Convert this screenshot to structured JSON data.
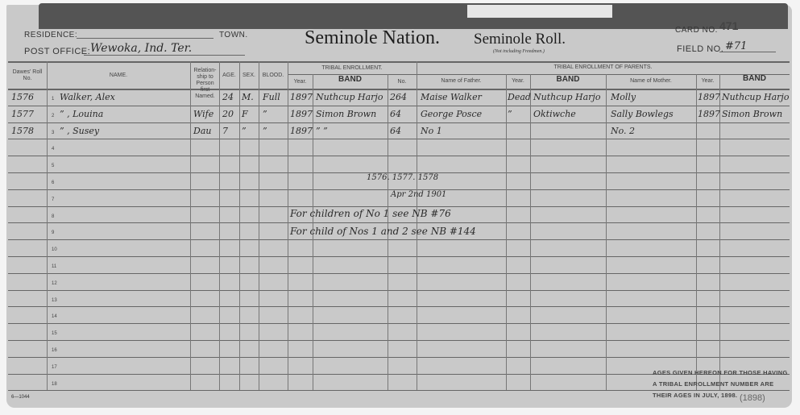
{
  "header": {
    "residence_label": "RESIDENCE:",
    "town_label": "TOWN.",
    "post_office_label": "POST OFFICE:",
    "post_office_value": "Wewoka, Ind. Ter.",
    "title_nation": "Seminole Nation.",
    "title_roll": "Seminole Roll.",
    "subtitle": "(Not including Freedmen.)",
    "card_no_label": "CARD NO.",
    "card_no_value": "471",
    "field_no_label": "FIELD NO.",
    "field_no_value": "#71"
  },
  "columns": {
    "dawes": "Dawes' Roll No.",
    "name": "NAME.",
    "relationship": "Relation-ship to Person first Named.",
    "age": "AGE.",
    "sex": "SEX.",
    "blood": "BLOOD.",
    "tribal_enrollment": "TRIBAL ENROLLMENT.",
    "te_year": "Year.",
    "te_band": "BAND",
    "te_no": "No.",
    "parents": "TRIBAL ENROLLMENT OF PARENTS.",
    "father": "Name of Father.",
    "father_year": "Year.",
    "father_band": "BAND",
    "mother": "Name of Mother.",
    "mother_year": "Year.",
    "mother_band": "BAND"
  },
  "rows": [
    {
      "dawes": "1576",
      "name": "Walker, Alex",
      "rel": "",
      "age": "24",
      "sex": "M.",
      "blood": "Full",
      "year": "1897",
      "band": "Nuthcup Harjo",
      "no": "264",
      "father": "Maise Walker",
      "fyear": "Dead",
      "fband": "Nuthcup Harjo",
      "mother": "Molly",
      "myear": "1897",
      "mband": "Nuthcup Harjo"
    },
    {
      "dawes": "1577",
      "name": "” , Louina",
      "rel": "Wife",
      "age": "20",
      "sex": "F",
      "blood": "”",
      "year": "1897",
      "band": "Simon Brown",
      "no": "64",
      "father": "George Posce",
      "fyear": "”",
      "fband": "Oktiwche",
      "mother": "Sally Bowlegs",
      "myear": "1897",
      "mband": "Simon Brown"
    },
    {
      "dawes": "1578",
      "name": "” , Susey",
      "rel": "Dau",
      "age": "7",
      "sex": "”",
      "blood": "”",
      "year": "1897",
      "band": "”    ”",
      "no": "64",
      "father": "No 1",
      "fyear": "",
      "fband": "",
      "mother": "No. 2",
      "myear": "",
      "mband": ""
    }
  ],
  "row_numbers": [
    "1",
    "2",
    "3",
    "4",
    "5",
    "6",
    "7",
    "8",
    "9",
    "10",
    "11",
    "12",
    "13",
    "14",
    "15",
    "16",
    "17",
    "18"
  ],
  "annotations": {
    "roll_numbers": "1576. 1577. 1578",
    "date": "Apr 2nd 1901",
    "note1": "For children of No 1 see NB #76",
    "note2": "For child of Nos 1 and 2 see NB #144"
  },
  "footer": {
    "ages_note_1": "AGES GIVEN HEREON FOR THOSE HAVING",
    "ages_note_2": "A TRIBAL ENROLLMENT NUMBER ARE",
    "ages_note_3": "THEIR AGES IN JULY, 1898.",
    "ages_year_pencil": "(1898)",
    "form_no": "6—1044"
  }
}
